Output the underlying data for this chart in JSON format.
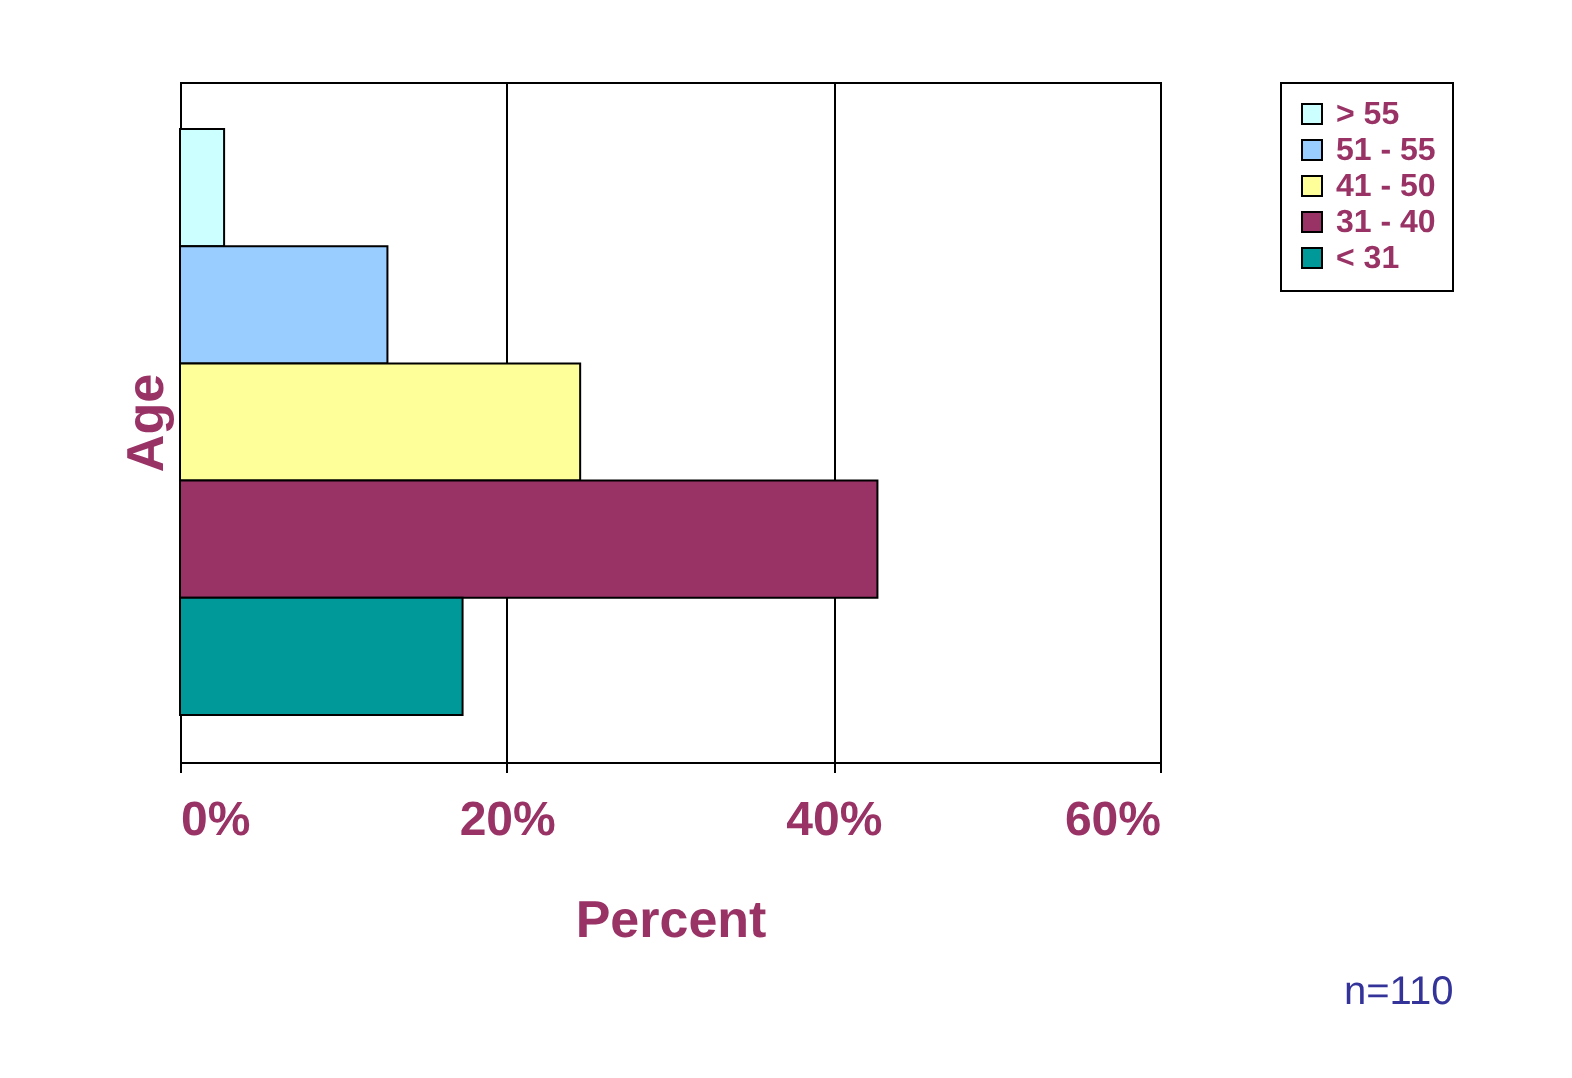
{
  "chart_data": {
    "type": "bar",
    "orientation": "horizontal",
    "xlabel": "Percent",
    "ylabel": "Age",
    "categories": [
      null,
      null,
      null,
      null,
      null
    ],
    "series": [
      {
        "name": "> 55",
        "color": "#ccffff",
        "values": [
          2.7,
          null,
          null,
          null,
          null
        ]
      },
      {
        "name": "51 - 55",
        "color": "#99ccff",
        "values": [
          null,
          12.7,
          null,
          null,
          null
        ]
      },
      {
        "name": "41 - 50",
        "color": "#ffff99",
        "values": [
          null,
          null,
          24.5,
          null,
          null
        ]
      },
      {
        "name": "31 - 40",
        "color": "#993366",
        "values": [
          null,
          null,
          null,
          42.7,
          null
        ]
      },
      {
        "name": "< 31",
        "color": "#009999",
        "values": [
          null,
          null,
          null,
          null,
          17.3
        ]
      }
    ],
    "xlim": [
      0,
      60
    ],
    "xticks": [
      {
        "value": 0,
        "label": "0%"
      },
      {
        "value": 20,
        "label": "20%"
      },
      {
        "value": 40,
        "label": "40%"
      },
      {
        "value": 60,
        "label": "60%"
      }
    ],
    "grid": "x",
    "legend": "right",
    "tick_labels": "x",
    "annotations": [
      "n=110"
    ]
  }
}
